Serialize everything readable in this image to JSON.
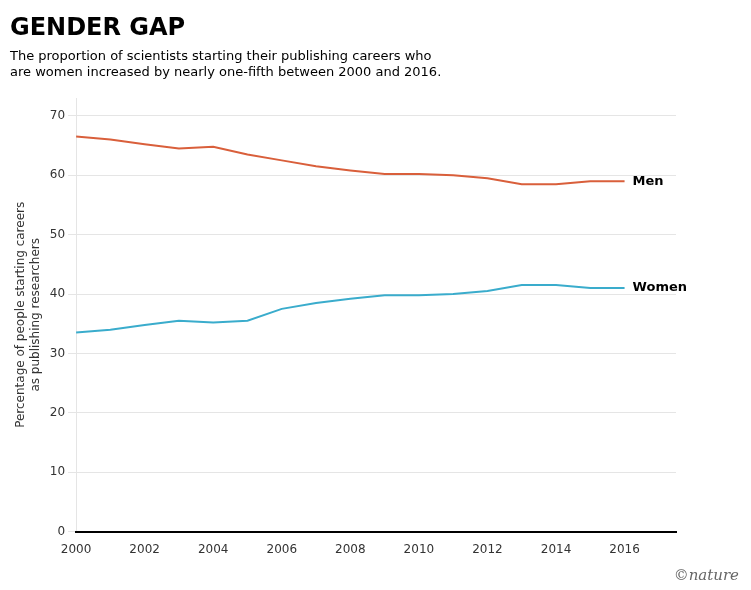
{
  "chart_data": {
    "type": "line",
    "title": "GENDER GAP",
    "subtitle": "The proportion of scientists starting their publishing careers who\nare women increased by nearly one-fifth between 2000 and 2016.",
    "ylabel": "Percentage of people starting careers\nas publishing researchers",
    "x": [
      2000,
      2001,
      2002,
      2003,
      2004,
      2005,
      2006,
      2007,
      2008,
      2009,
      2010,
      2011,
      2012,
      2013,
      2014,
      2015,
      2016
    ],
    "series": [
      {
        "name": "Men",
        "color": "#d95f3b",
        "values": [
          66.5,
          66.0,
          65.2,
          64.5,
          64.8,
          63.5,
          62.5,
          61.5,
          60.8,
          60.2,
          60.2,
          60.0,
          59.5,
          58.5,
          58.5,
          59.0,
          59.0
        ]
      },
      {
        "name": "Women",
        "color": "#3aaccc",
        "values": [
          33.5,
          34.0,
          34.8,
          35.5,
          35.2,
          35.5,
          37.5,
          38.5,
          39.2,
          39.8,
          39.8,
          40.0,
          40.5,
          41.5,
          41.5,
          41.0,
          41.0
        ]
      }
    ],
    "xlim": [
      2000,
      2017.5
    ],
    "xticks": [
      2000,
      2002,
      2004,
      2006,
      2008,
      2010,
      2012,
      2014,
      2016
    ],
    "ylim": [
      0,
      73
    ],
    "yticks": [
      0,
      10,
      20,
      30,
      40,
      50,
      60,
      70
    ],
    "grid": true,
    "annotations": [
      "©nature"
    ]
  }
}
